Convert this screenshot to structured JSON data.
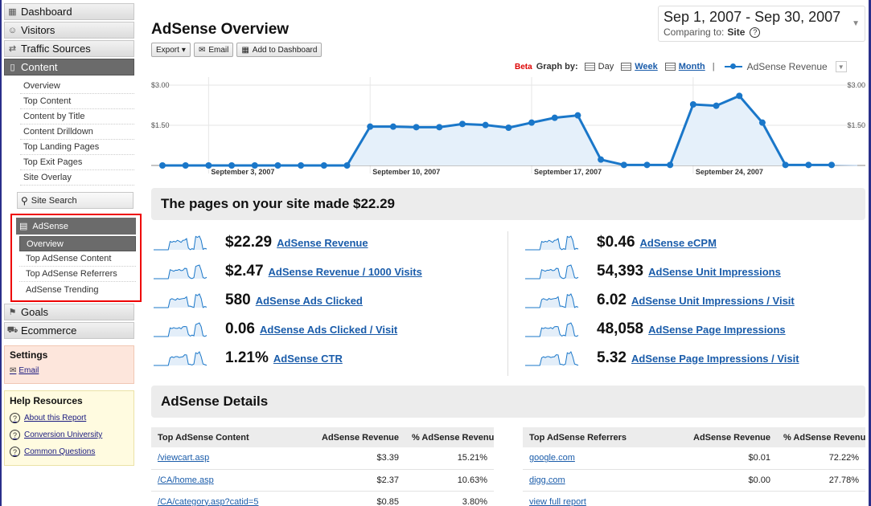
{
  "sidebar": {
    "top_items": [
      {
        "label": "Dashboard",
        "icon": "grid-icon"
      },
      {
        "label": "Visitors",
        "icon": "person-icon"
      },
      {
        "label": "Traffic Sources",
        "icon": "traffic-icon"
      },
      {
        "label": "Content",
        "icon": "page-icon"
      }
    ],
    "content_sub_items": [
      "Overview",
      "Top Content",
      "Content by Title",
      "Content Drilldown",
      "Top Landing Pages",
      "Top Exit Pages",
      "Site Overlay"
    ],
    "site_search": "Site Search",
    "adsense": {
      "label": "AdSense",
      "items": [
        "Overview",
        "Top AdSense Content",
        "Top AdSense Referrers",
        "AdSense Trending"
      ]
    },
    "bottom_items": [
      {
        "label": "Goals",
        "icon": "flag-icon"
      },
      {
        "label": "Ecommerce",
        "icon": "cart-icon"
      }
    ],
    "settings": {
      "title": "Settings",
      "email": "Email"
    },
    "help": {
      "title": "Help Resources",
      "links": [
        "About this Report",
        "Conversion University",
        "Common Questions"
      ]
    }
  },
  "header": {
    "title": "AdSense Overview",
    "toolbar": {
      "export": "Export",
      "email": "Email",
      "add_dashboard": "Add to Dashboard"
    },
    "date_range": "Sep 1, 2007 - Sep 30, 2007",
    "comparing_label": "Comparing to:",
    "comparing_value": "Site",
    "help_glyph": "?"
  },
  "graph_by": {
    "beta": "Beta",
    "label": "Graph by:",
    "day": "Day",
    "week": "Week",
    "month": "Month",
    "separator": "|",
    "metric": "AdSense Revenue"
  },
  "chart_data": {
    "type": "area",
    "series": [
      {
        "name": "AdSense Revenue",
        "values": [
          0,
          0,
          0,
          0,
          0,
          0,
          0,
          0,
          0,
          1.45,
          1.45,
          1.43,
          1.43,
          1.55,
          1.51,
          1.41,
          1.6,
          1.78,
          1.87,
          0.22,
          0.02,
          0.02,
          0.02,
          2.28,
          2.23,
          2.6,
          1.6,
          0.02,
          0.02,
          0.02
        ]
      }
    ],
    "x": [
      "Sep 1",
      "Sep 2",
      "Sep 3",
      "Sep 4",
      "Sep 5",
      "Sep 6",
      "Sep 7",
      "Sep 8",
      "Sep 9",
      "Sep 10",
      "Sep 11",
      "Sep 12",
      "Sep 13",
      "Sep 14",
      "Sep 15",
      "Sep 16",
      "Sep 17",
      "Sep 18",
      "Sep 19",
      "Sep 20",
      "Sep 21",
      "Sep 22",
      "Sep 23",
      "Sep 24",
      "Sep 25",
      "Sep 26",
      "Sep 27",
      "Sep 28",
      "Sep 29",
      "Sep 30"
    ],
    "ylim": [
      0,
      3.0
    ],
    "y_ticks": [
      "$3.00",
      "$1.50"
    ],
    "x_tick_labels": [
      "September 3, 2007",
      "September 10, 2007",
      "September 17, 2007",
      "September 24, 2007"
    ],
    "grid": true,
    "color": "#1a77c9"
  },
  "summary": {
    "title": "The pages on your site made $22.29"
  },
  "metrics_left": [
    {
      "value": "$22.29",
      "label": "AdSense Revenue"
    },
    {
      "value": "$2.47",
      "label": "AdSense Revenue / 1000 Visits"
    },
    {
      "value": "580",
      "label": "AdSense Ads Clicked"
    },
    {
      "value": "0.06",
      "label": "AdSense Ads Clicked / Visit"
    },
    {
      "value": "1.21%",
      "label": "AdSense CTR"
    }
  ],
  "metrics_right": [
    {
      "value": "$0.46",
      "label": "AdSense eCPM"
    },
    {
      "value": "54,393",
      "label": "AdSense Unit Impressions"
    },
    {
      "value": "6.02",
      "label": "AdSense Unit Impressions / Visit"
    },
    {
      "value": "48,058",
      "label": "AdSense Page Impressions"
    },
    {
      "value": "5.32",
      "label": "AdSense Page Impressions / Visit"
    }
  ],
  "details": {
    "title": "AdSense Details"
  },
  "content_table": {
    "headers": [
      "Top AdSense Content",
      "AdSense Revenue",
      "% AdSense Revenue"
    ],
    "rows": [
      [
        "/viewcart.asp",
        "$3.39",
        "15.21%"
      ],
      [
        "/CA/home.asp",
        "$2.37",
        "10.63%"
      ],
      [
        "/CA/category.asp?catid=5",
        "$0.85",
        "3.80%"
      ]
    ]
  },
  "referrers_table": {
    "headers": [
      "Top AdSense Referrers",
      "AdSense Revenue",
      "% AdSense Revenue"
    ],
    "rows": [
      [
        "google.com",
        "$0.01",
        "72.22%"
      ],
      [
        "digg.com",
        "$0.00",
        "27.78%"
      ]
    ],
    "view_full": "view full report"
  }
}
